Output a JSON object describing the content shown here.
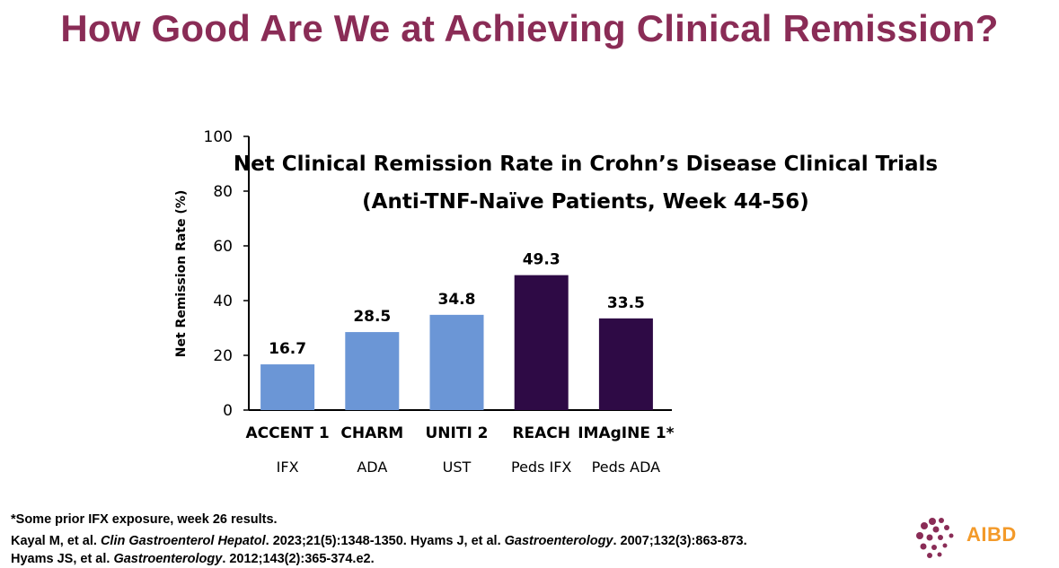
{
  "slide": {
    "title": "How Good Are We at Achieving Clinical Remission?"
  },
  "chart_data": {
    "type": "bar",
    "title": "Net Clinical Remission Rate in Crohn’s Disease Clinical Trials",
    "subtitle": "(Anti-TNF-Naïve Patients, Week 44-56)",
    "ylabel": "Net Remission Rate (%)",
    "ylim": [
      0,
      100
    ],
    "yticks": [
      0,
      20,
      40,
      60,
      80,
      100
    ],
    "categories": [
      "ACCENT 1",
      "CHARM",
      "UNITI 2",
      "REACH",
      "IMAgINE 1*"
    ],
    "sublabels": [
      "IFX",
      "ADA",
      "UST",
      "Peds IFX",
      "Peds ADA"
    ],
    "values": [
      16.7,
      28.5,
      34.8,
      49.3,
      33.5
    ],
    "value_labels": [
      "16.7",
      "28.5",
      "34.8",
      "49.3",
      "33.5"
    ],
    "bar_colors": [
      "#6b96d6",
      "#6b96d6",
      "#6b96d6",
      "#2e0a45",
      "#2e0a45"
    ],
    "grid": false
  },
  "footnote": "*Some prior IFX exposure, week 26 results.",
  "citation": {
    "line1_part1": "Kayal M, et al. ",
    "line1_journal1": "Clin Gastroenterol Hepatol",
    "line1_part2": ". 2023;21(5):1348-1350. Hyams J, et al. ",
    "line1_journal2": "Gastroenterology",
    "line1_part3": ". 2007;132(3):863-873.",
    "line2_part1": "Hyams JS, et al. ",
    "line2_journal": "Gastroenterology",
    "line2_part2": ". 2012;143(2):365-374.e2."
  },
  "logo": {
    "text": "AIBD",
    "dot_color": "#8a2c56",
    "text_color": "#f39a2a"
  }
}
